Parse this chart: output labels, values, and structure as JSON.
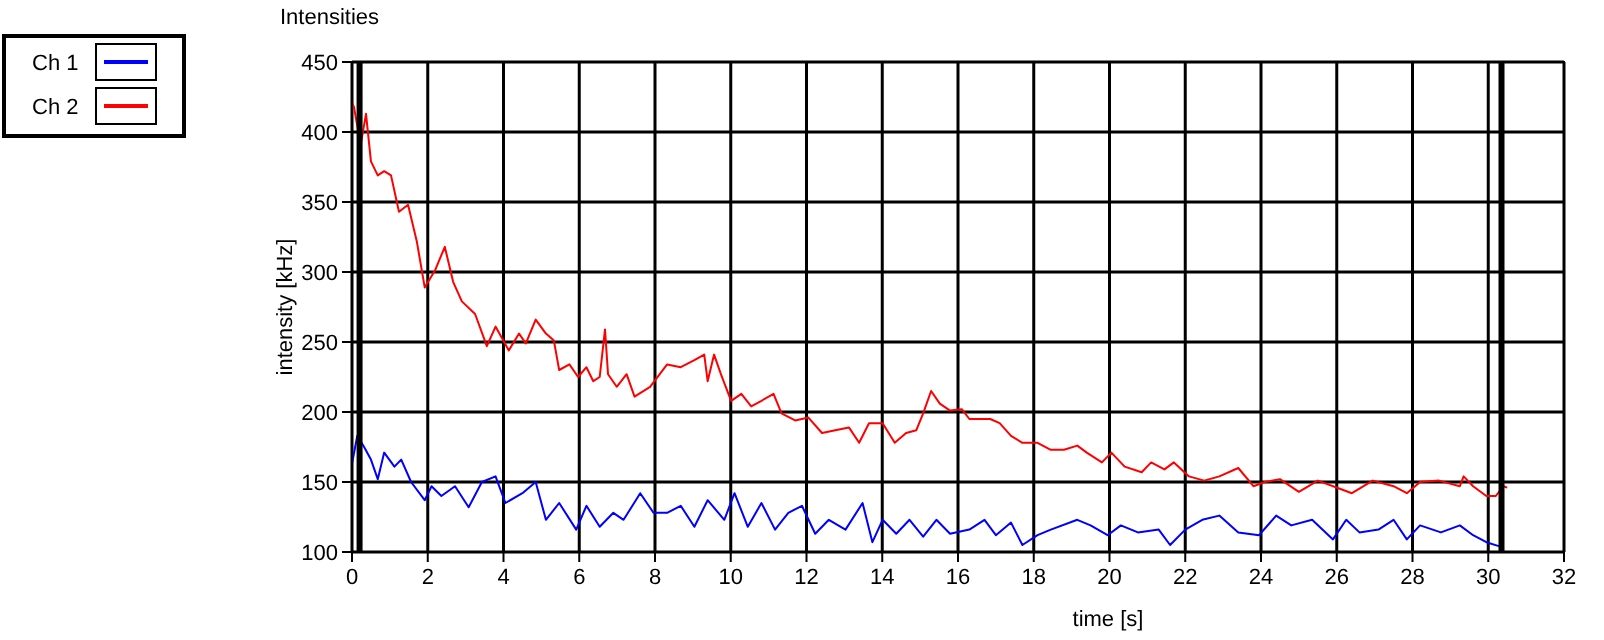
{
  "chart_data": {
    "type": "line",
    "title": "Intensities",
    "xlabel": "time [s]",
    "ylabel": "intensity [kHz]",
    "xlim": [
      0,
      32
    ],
    "xticks": [
      0,
      2,
      4,
      6,
      8,
      10,
      12,
      14,
      16,
      18,
      20,
      22,
      24,
      26,
      28,
      30,
      32
    ],
    "ylim": [
      100,
      450
    ],
    "yticks": [
      100,
      150,
      200,
      250,
      300,
      350,
      400,
      450
    ],
    "grid": true,
    "legend": "top left",
    "line_style": "solid",
    "marker": "none",
    "ref_lines": [
      {
        "axis": "x",
        "value": 0.2,
        "color": "#000000"
      },
      {
        "axis": "x",
        "value": 30.35,
        "color": "#000000"
      }
    ],
    "series": [
      {
        "name": "Ch 1",
        "color": "#0000ff",
        "x": [
          0,
          0.14,
          0.32,
          0.5,
          0.68,
          0.85,
          1.12,
          1.3,
          1.56,
          1.92,
          2.1,
          2.36,
          2.72,
          3.08,
          3.43,
          3.79,
          4.05,
          4.5,
          4.85,
          5.12,
          5.47,
          5.92,
          6.19,
          6.54,
          6.9,
          7.17,
          7.61,
          7.96,
          8.32,
          8.68,
          9.04,
          9.39,
          9.83,
          10.1,
          10.45,
          10.81,
          11.17,
          11.52,
          11.88,
          12.23,
          12.59,
          13.03,
          13.48,
          13.74,
          14.01,
          14.37,
          14.72,
          15.08,
          15.43,
          15.79,
          16.3,
          16.7,
          17.0,
          17.4,
          17.7,
          18.1,
          18.45,
          19.15,
          19.5,
          19.95,
          20.3,
          20.75,
          21.3,
          21.6,
          22,
          22.45,
          22.9,
          23.4,
          23.95,
          24.4,
          24.8,
          25.35,
          25.9,
          26.25,
          26.6,
          27.1,
          27.5,
          27.85,
          28.2,
          28.75,
          29.25,
          29.6,
          29.95,
          30.3
        ],
        "values": [
          163,
          183,
          175,
          166,
          152,
          171,
          161,
          166,
          150,
          137,
          147,
          140,
          147,
          132,
          150,
          154,
          135,
          142,
          150,
          123,
          135,
          116,
          133,
          118,
          128,
          123,
          142,
          128,
          128,
          133,
          118,
          137,
          123,
          142,
          118,
          135,
          116,
          128,
          133,
          113,
          123,
          116,
          135,
          107,
          123,
          113,
          123,
          111,
          123,
          113,
          116,
          123,
          112,
          121,
          105,
          112,
          116,
          123,
          119,
          112,
          119,
          114,
          116,
          105,
          116,
          123,
          126,
          114,
          112,
          126,
          119,
          123,
          109,
          123,
          114,
          116,
          123,
          109,
          119,
          114,
          119,
          112,
          107,
          104
        ]
      },
      {
        "name": "Ch 2",
        "color": "#ff0000",
        "x": [
          0,
          0.05,
          0.23,
          0.37,
          0.5,
          0.68,
          0.85,
          1.03,
          1.24,
          1.48,
          1.71,
          1.92,
          2.19,
          2.45,
          2.67,
          2.9,
          3.25,
          3.56,
          3.79,
          4.14,
          4.41,
          4.59,
          4.85,
          5.12,
          5.33,
          5.47,
          5.74,
          5.97,
          6.19,
          6.37,
          6.54,
          6.68,
          6.76,
          6.99,
          7.25,
          7.46,
          7.87,
          8.32,
          8.68,
          9.04,
          9.3,
          9.39,
          9.56,
          9.74,
          10.01,
          10.28,
          10.54,
          10.81,
          11.13,
          11.34,
          11.7,
          12.05,
          12.41,
          12.76,
          13.12,
          13.39,
          13.65,
          14.01,
          14.33,
          14.63,
          14.9,
          15.08,
          15.29,
          15.52,
          15.79,
          16.1,
          16.3,
          16.85,
          17.1,
          17.4,
          17.7,
          18.1,
          18.45,
          18.8,
          19.15,
          19.4,
          19.8,
          20.05,
          20.4,
          20.85,
          21.1,
          21.45,
          21.7,
          22.1,
          22.5,
          22.9,
          23.4,
          23.8,
          24.1,
          24.5,
          25.0,
          25.5,
          26.1,
          26.4,
          26.95,
          27.5,
          27.85,
          28.2,
          28.7,
          29.25,
          29.35,
          29.6,
          29.95,
          30.2,
          30.4,
          30.5
        ],
        "values": [
          421,
          418,
          391,
          413,
          379,
          369,
          372,
          369,
          343,
          348,
          322,
          289,
          301,
          318,
          293,
          279,
          270,
          247,
          261,
          244,
          256,
          249,
          266,
          256,
          251,
          230,
          234,
          225,
          232,
          222,
          225,
          259,
          227,
          218,
          227,
          211,
          218,
          234,
          232,
          237,
          241,
          222,
          241,
          227,
          208,
          213,
          204,
          208,
          213,
          199,
          194,
          196,
          185,
          187,
          189,
          178,
          192,
          192,
          178,
          185,
          187,
          199,
          215,
          206,
          201,
          202,
          195,
          195,
          192,
          183,
          178,
          178,
          173,
          173,
          176,
          171,
          164,
          171,
          161,
          157,
          164,
          159,
          164,
          154,
          151,
          154,
          160,
          147,
          150,
          152,
          143,
          151,
          145,
          142,
          151,
          147,
          142,
          150,
          151,
          147,
          154,
          147,
          140,
          140,
          147,
          146
        ]
      }
    ]
  }
}
